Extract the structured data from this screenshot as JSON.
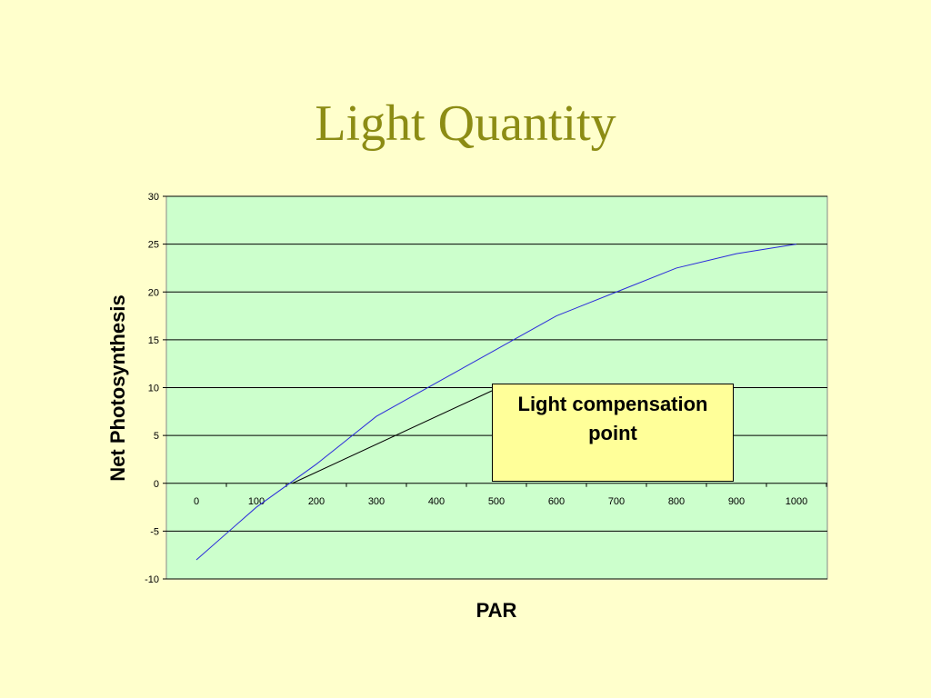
{
  "slide": {
    "title": "Light Quantity"
  },
  "colors": {
    "background": "#FFFFCC",
    "plot_area": "#CCFFCC",
    "title": "#8C8C14",
    "series_line": "#2A2ADB",
    "callout_fill": "#FFFF99"
  },
  "chart_data": {
    "type": "line",
    "xlabel": "PAR",
    "ylabel": "Net Photosynthesis",
    "x_categories": [
      "0",
      "100",
      "200",
      "300",
      "400",
      "500",
      "600",
      "700",
      "800",
      "900",
      "1000"
    ],
    "x": [
      0,
      100,
      200,
      300,
      400,
      500,
      600,
      700,
      800,
      900,
      1000
    ],
    "ylim": [
      -10,
      30
    ],
    "yticks": [
      "30",
      "25",
      "20",
      "15",
      "10",
      "5",
      "0",
      "-5",
      "-10"
    ],
    "grid": "horizontal",
    "legend": "none",
    "series": [
      {
        "values": [
          -8,
          -2.5,
          2,
          7,
          10.5,
          14,
          17.5,
          20,
          22.5,
          24,
          25
        ]
      }
    ],
    "annotations": [
      {
        "text": "Light compensation point",
        "points_to_x": 160,
        "points_to_y": 0
      }
    ]
  }
}
